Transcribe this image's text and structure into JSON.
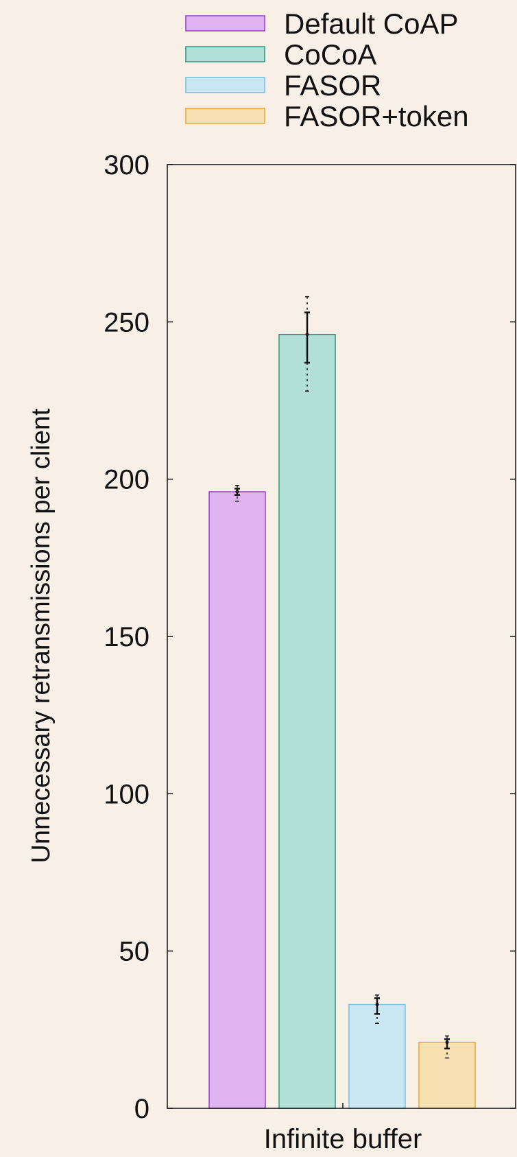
{
  "chart_data": {
    "type": "bar",
    "title": "",
    "xlabel": "",
    "ylabel": "Unnecessary retransmissions per client",
    "categories": [
      "Infinite buffer"
    ],
    "ylim": [
      0,
      300
    ],
    "yticks": [
      0,
      50,
      100,
      150,
      200,
      250,
      300
    ],
    "grid": false,
    "legend": "top",
    "series": [
      {
        "name": "Default CoAP",
        "values": [
          196
        ],
        "err_inner": [
          [
            195,
            197
          ]
        ],
        "err_outer": [
          [
            193,
            198
          ]
        ],
        "fill": "#dfb2f0",
        "stroke": "#9c3ccc"
      },
      {
        "name": "CoCoA",
        "values": [
          246
        ],
        "err_inner": [
          [
            237,
            253
          ]
        ],
        "err_outer": [
          [
            228,
            258
          ]
        ],
        "fill": "#b2e0d6",
        "stroke": "#2a9b7c"
      },
      {
        "name": "FASOR",
        "values": [
          33
        ],
        "err_inner": [
          [
            30,
            35
          ]
        ],
        "err_outer": [
          [
            27,
            36
          ]
        ],
        "fill": "#cce7f4",
        "stroke": "#74c0df"
      },
      {
        "name": "FASOR+token",
        "values": [
          21
        ],
        "err_inner": [
          [
            19,
            22
          ]
        ],
        "err_outer": [
          [
            16,
            23
          ]
        ],
        "fill": "#f6e0b2",
        "stroke": "#e8a830"
      }
    ]
  }
}
